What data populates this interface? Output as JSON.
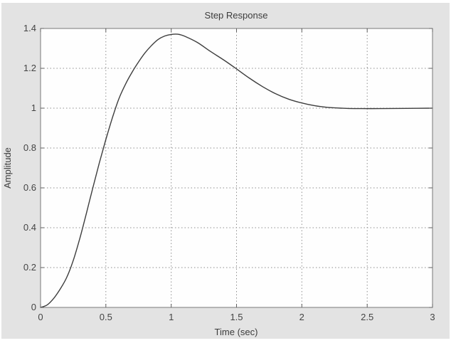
{
  "chart_data": {
    "type": "line",
    "title": "Step Response",
    "xlabel": "Time (sec)",
    "ylabel": "Amplitude",
    "xlim": [
      0,
      3
    ],
    "ylim": [
      0,
      1.4
    ],
    "grid": "dotted",
    "legend": null,
    "x_ticks": [
      {
        "label": "0",
        "value": 0
      },
      {
        "label": "0.5",
        "value": 0.5
      },
      {
        "label": "1",
        "value": 1
      },
      {
        "label": "1.5",
        "value": 1.5
      },
      {
        "label": "2",
        "value": 2
      },
      {
        "label": "2.5",
        "value": 2.5
      },
      {
        "label": "3",
        "value": 3
      }
    ],
    "y_ticks": [
      {
        "label": "0",
        "value": 0
      },
      {
        "label": "0.2",
        "value": 0.2
      },
      {
        "label": "0.4",
        "value": 0.4
      },
      {
        "label": "0.6",
        "value": 0.6
      },
      {
        "label": "0.8",
        "value": 0.8
      },
      {
        "label": "1",
        "value": 1
      },
      {
        "label": "1.2",
        "value": 1.2
      },
      {
        "label": "1.4",
        "value": 1.4
      }
    ],
    "series": [
      {
        "name": "step-response",
        "color": "#3d3d3d",
        "points": [
          [
            0.0,
            0.0
          ],
          [
            0.05,
            0.012
          ],
          [
            0.1,
            0.045
          ],
          [
            0.15,
            0.092
          ],
          [
            0.2,
            0.15
          ],
          [
            0.25,
            0.235
          ],
          [
            0.3,
            0.345
          ],
          [
            0.35,
            0.47
          ],
          [
            0.4,
            0.6
          ],
          [
            0.45,
            0.725
          ],
          [
            0.5,
            0.843
          ],
          [
            0.55,
            0.952
          ],
          [
            0.6,
            1.048
          ],
          [
            0.65,
            1.12
          ],
          [
            0.7,
            1.18
          ],
          [
            0.75,
            1.232
          ],
          [
            0.8,
            1.278
          ],
          [
            0.85,
            1.315
          ],
          [
            0.9,
            1.345
          ],
          [
            0.95,
            1.362
          ],
          [
            1.0,
            1.37
          ],
          [
            1.05,
            1.371
          ],
          [
            1.1,
            1.362
          ],
          [
            1.2,
            1.33
          ],
          [
            1.3,
            1.285
          ],
          [
            1.4,
            1.243
          ],
          [
            1.5,
            1.197
          ],
          [
            1.6,
            1.15
          ],
          [
            1.7,
            1.108
          ],
          [
            1.8,
            1.072
          ],
          [
            1.9,
            1.045
          ],
          [
            2.0,
            1.026
          ],
          [
            2.1,
            1.012
          ],
          [
            2.2,
            1.004
          ],
          [
            2.3,
            1.0
          ],
          [
            2.4,
            0.998
          ],
          [
            2.6,
            0.998
          ],
          [
            2.8,
            0.999
          ],
          [
            3.0,
            1.0
          ]
        ]
      }
    ]
  },
  "style": {
    "figure_background": "#e3e3e3",
    "plot_background": "#fefefe",
    "grid_color": "#8f8f8f",
    "spine_color": "#787878",
    "tick_color": "#606060",
    "text_color": "#3c3c3c"
  }
}
